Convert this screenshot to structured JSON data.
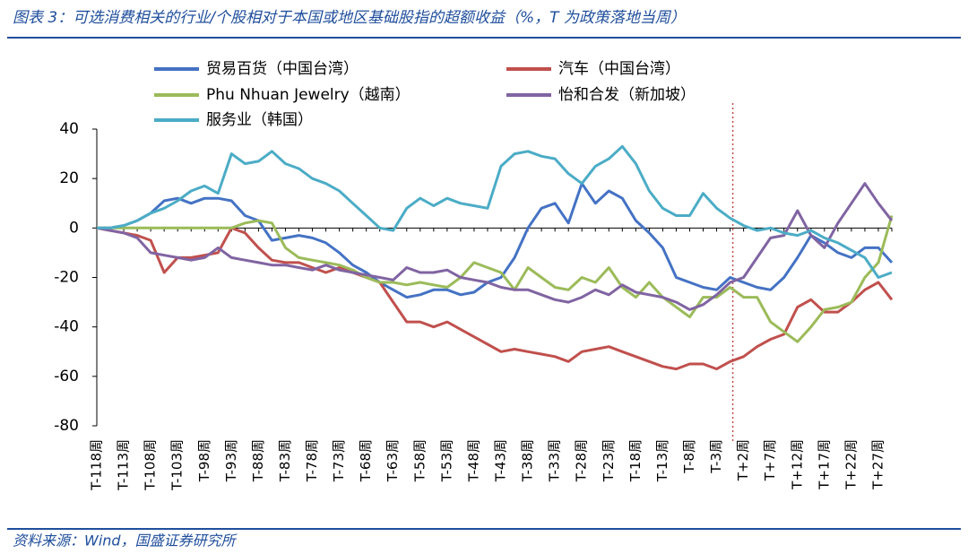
{
  "chart_data": {
    "type": "line",
    "title": "图表 3：可选消费相关的行业/个股相对于本国或地区基础股指的超额收益（%，T 为政策落地当周）",
    "source": "资料来源：Wind，国盛证券研究所",
    "categories": [
      "T-118周",
      null,
      "T-113周",
      null,
      "T-108周",
      null,
      "T-103周",
      null,
      "T-98周",
      null,
      "T-93周",
      null,
      "T-88周",
      null,
      "T-83周",
      null,
      "T-78周",
      null,
      "T-73周",
      null,
      "T-68周",
      null,
      "T-63周",
      null,
      "T-58周",
      null,
      "T-53周",
      null,
      "T-48周",
      null,
      "T-43周",
      null,
      "T-38周",
      null,
      "T-33周",
      null,
      "T-28周",
      null,
      "T-23周",
      null,
      "T-18周",
      null,
      "T-13周",
      null,
      "T-8周",
      null,
      "T-3周",
      null,
      "T+2周",
      null,
      "T+7周",
      null,
      "T+12周",
      null,
      "T+17周",
      null,
      "T+22周",
      null,
      "T+27周",
      null
    ],
    "series": [
      {
        "name": "贸易百货（中国台湾）",
        "color": "#4472c4",
        "values": [
          0,
          0,
          1,
          3,
          6,
          11,
          12,
          10,
          12,
          12,
          11,
          5,
          3,
          -5,
          -4,
          -3,
          -4,
          -6,
          -10,
          -15,
          -18,
          -22,
          -25,
          -28,
          -27,
          -25,
          -25,
          -27,
          -26,
          -22,
          -20,
          -12,
          0,
          8,
          10,
          2,
          18,
          10,
          15,
          12,
          3,
          -2,
          -8,
          -20,
          -22,
          -24,
          -25,
          -20,
          -22,
          -24,
          -25,
          -20,
          -12,
          -3,
          -6,
          -10,
          -12,
          -8,
          -8,
          -14
        ]
      },
      {
        "name": "汽车（中国台湾）",
        "color": "#c0504d",
        "values": [
          0,
          -1,
          -2,
          -3,
          -5,
          -18,
          -12,
          -12,
          -11,
          -10,
          0,
          -2,
          -8,
          -13,
          -14,
          -14,
          -16,
          -18,
          -16,
          -18,
          -20,
          -22,
          -30,
          -38,
          -38,
          -40,
          -38,
          -41,
          -44,
          -47,
          -50,
          -49,
          -50,
          -51,
          -52,
          -54,
          -50,
          -49,
          -48,
          -50,
          -52,
          -54,
          -56,
          -57,
          -55,
          -55,
          -57,
          -54,
          -52,
          -48,
          -45,
          -43,
          -32,
          -29,
          -34,
          -34,
          -30,
          -25,
          -22,
          -29
        ]
      },
      {
        "name": "Phu Nhuan Jewelry（越南）",
        "color": "#9bbb59",
        "values": [
          0,
          0,
          0,
          0,
          0,
          0,
          0,
          0,
          0,
          0,
          0,
          2,
          3,
          2,
          -8,
          -12,
          -13,
          -14,
          -15,
          -17,
          -20,
          -22,
          -22,
          -23,
          -22,
          -23,
          -24,
          -20,
          -14,
          -16,
          -18,
          -25,
          -16,
          -20,
          -24,
          -25,
          -20,
          -22,
          -16,
          -24,
          -28,
          -22,
          -28,
          -32,
          -36,
          -28,
          -28,
          -24,
          -28,
          -28,
          -38,
          -42,
          -46,
          -40,
          -33,
          -32,
          -30,
          -20,
          -14,
          5
        ]
      },
      {
        "name": "怡和合发（新加坡）",
        "color": "#8064a2",
        "values": [
          0,
          -1,
          -2,
          -4,
          -10,
          -11,
          -12,
          -13,
          -12,
          -8,
          -12,
          -13,
          -14,
          -15,
          -15,
          -16,
          -17,
          -15,
          -17,
          -18,
          -19,
          -20,
          -21,
          -16,
          -18,
          -18,
          -17,
          -20,
          -21,
          -22,
          -24,
          -25,
          -25,
          -27,
          -29,
          -30,
          -28,
          -25,
          -27,
          -23,
          -26,
          -27,
          -28,
          -30,
          -33,
          -31,
          -27,
          -22,
          -20,
          -12,
          -4,
          -3,
          7,
          -3,
          -8,
          2,
          10,
          18,
          10,
          3
        ]
      },
      {
        "name": "服务业（韩国）",
        "color": "#4bacc6",
        "values": [
          0,
          0,
          1,
          3,
          6,
          8,
          11,
          15,
          17,
          14,
          30,
          26,
          27,
          31,
          26,
          24,
          20,
          18,
          15,
          10,
          5,
          0,
          -1,
          8,
          12,
          9,
          12,
          10,
          9,
          8,
          25,
          30,
          31,
          29,
          28,
          22,
          18,
          25,
          28,
          33,
          26,
          15,
          8,
          5,
          5,
          14,
          8,
          4,
          1,
          -1,
          0,
          -2,
          -3,
          -1,
          -4,
          -6,
          -9,
          -12,
          -20,
          -18
        ]
      }
    ],
    "ylim": [
      -80,
      40
    ],
    "yticks": [
      -80,
      -60,
      -40,
      -20,
      0,
      20,
      40
    ]
  }
}
